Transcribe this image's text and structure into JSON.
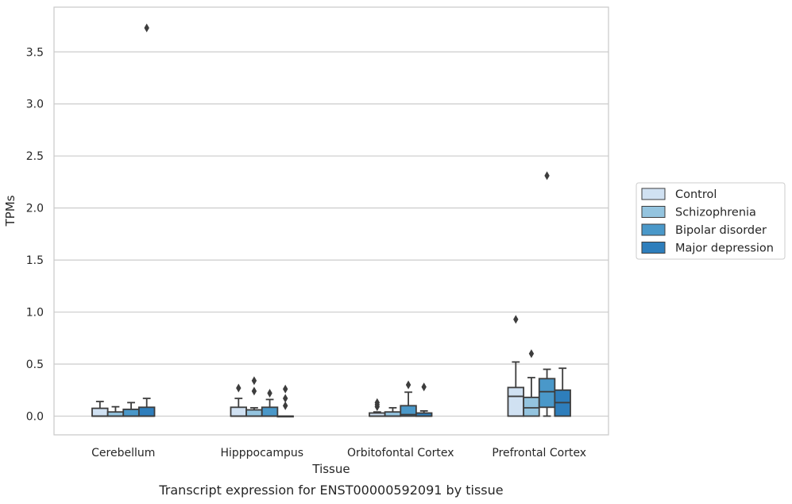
{
  "chart_data": {
    "type": "box",
    "caption": "Transcript expression for ENST00000592091 by tissue",
    "xlabel": "Tissue",
    "ylabel": "TPMs",
    "ylim": [
      -0.18,
      3.93
    ],
    "yticks": [
      "0.0",
      "0.5",
      "1.0",
      "1.5",
      "2.0",
      "2.5",
      "3.0",
      "3.5"
    ],
    "grid": "horizontal",
    "legend_position": "right",
    "categories": [
      "Cerebellum",
      "Hipppocampus",
      "Orbitofontal Cortex",
      "Prefrontal Cortex"
    ],
    "series": [
      {
        "name": "Control",
        "color": "#d0e1f2",
        "boxes": [
          {
            "q1": 0.0,
            "median": 0.0,
            "q3": 0.075,
            "whislo": 0.0,
            "whishi": 0.14,
            "fliers": [],
            "cap_lo": false
          },
          {
            "q1": 0.0,
            "median": 0.0,
            "q3": 0.085,
            "whislo": 0.0,
            "whishi": 0.17,
            "fliers": [
              0.27
            ],
            "cap_lo": false
          },
          {
            "q1": 0.0,
            "median": 0.0,
            "q3": 0.03,
            "whislo": 0.0,
            "whishi": 0.04,
            "fliers": [
              0.09,
              0.11,
              0.13
            ],
            "cap_lo": false
          },
          {
            "q1": 0.0,
            "median": 0.19,
            "q3": 0.275,
            "whislo": 0.0,
            "whishi": 0.52,
            "fliers": [
              0.93
            ],
            "cap_lo": false
          }
        ]
      },
      {
        "name": "Schizophrenia",
        "color": "#94c4df",
        "boxes": [
          {
            "q1": 0.0,
            "median": 0.0,
            "q3": 0.04,
            "whislo": 0.0,
            "whishi": 0.09,
            "fliers": [],
            "cap_lo": false
          },
          {
            "q1": 0.0,
            "median": 0.0,
            "q3": 0.06,
            "whislo": 0.0,
            "whishi": 0.08,
            "fliers": [
              0.24,
              0.34
            ],
            "cap_lo": false
          },
          {
            "q1": 0.0,
            "median": 0.0,
            "q3": 0.04,
            "whislo": 0.0,
            "whishi": 0.08,
            "fliers": [],
            "cap_lo": false
          },
          {
            "q1": 0.0,
            "median": 0.08,
            "q3": 0.18,
            "whislo": 0.0,
            "whishi": 0.37,
            "fliers": [
              0.6
            ],
            "cap_lo": false
          }
        ]
      },
      {
        "name": "Bipolar disorder",
        "color": "#4a98c9",
        "boxes": [
          {
            "q1": 0.0,
            "median": 0.0,
            "q3": 0.065,
            "whislo": 0.0,
            "whishi": 0.13,
            "fliers": [],
            "cap_lo": false
          },
          {
            "q1": 0.0,
            "median": 0.0,
            "q3": 0.085,
            "whislo": 0.0,
            "whishi": 0.16,
            "fliers": [
              0.22
            ],
            "cap_lo": false
          },
          {
            "q1": 0.0,
            "median": 0.015,
            "q3": 0.1,
            "whislo": 0.0,
            "whishi": 0.23,
            "fliers": [
              0.3
            ],
            "cap_lo": false
          },
          {
            "q1": 0.085,
            "median": 0.235,
            "q3": 0.36,
            "whislo": 0.0,
            "whishi": 0.45,
            "fliers": [
              2.31
            ],
            "cap_lo": true
          }
        ]
      },
      {
        "name": "Major depression",
        "color": "#2e7ebc",
        "boxes": [
          {
            "q1": 0.0,
            "median": 0.0,
            "q3": 0.085,
            "whislo": 0.0,
            "whishi": 0.17,
            "fliers": [
              3.73
            ],
            "cap_lo": false
          },
          {
            "q1": 0.0,
            "median": 0.0,
            "q3": 0.0,
            "whislo": 0.0,
            "whishi": 0.0,
            "fliers": [
              0.1,
              0.17,
              0.26
            ],
            "cap_lo": false
          },
          {
            "q1": 0.0,
            "median": 0.0,
            "q3": 0.03,
            "whislo": 0.0,
            "whishi": 0.05,
            "fliers": [
              0.28
            ],
            "cap_lo": false
          },
          {
            "q1": 0.0,
            "median": 0.13,
            "q3": 0.25,
            "whislo": 0.0,
            "whishi": 0.46,
            "fliers": [],
            "cap_lo": false
          }
        ]
      }
    ]
  }
}
